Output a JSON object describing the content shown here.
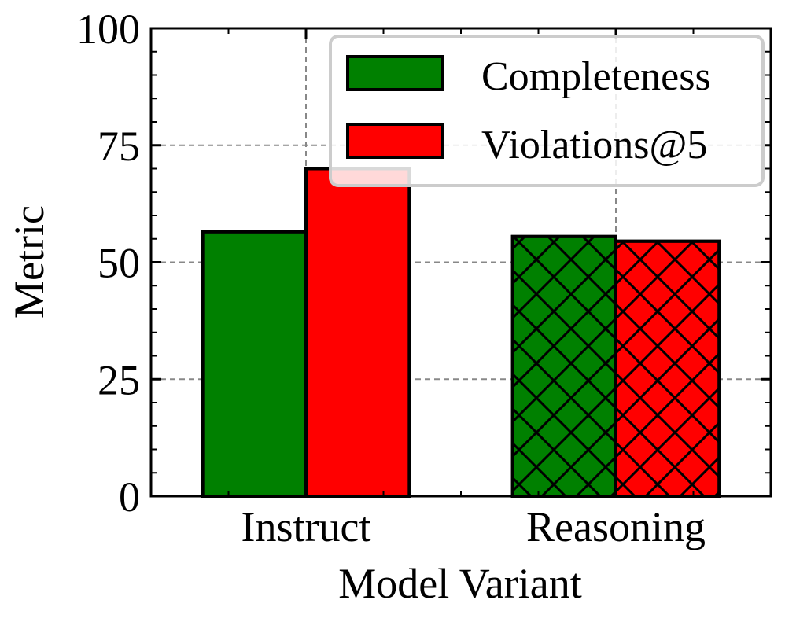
{
  "chart_data": {
    "type": "bar",
    "xlabel": "Model Variant",
    "ylabel": "Metric",
    "ylim": [
      0,
      100
    ],
    "yticks": [
      0,
      25,
      50,
      75,
      100
    ],
    "ytick_labels": [
      "0",
      "25",
      "50",
      "75",
      "100"
    ],
    "categories": [
      "Instruct",
      "Reasoning"
    ],
    "category_hatch": [
      "none",
      "crosshatch"
    ],
    "series": [
      {
        "name": "Completeness",
        "values": [
          56.5,
          55.5
        ],
        "color": "#008000"
      },
      {
        "name": "Violations@5",
        "values": [
          70.0,
          54.5
        ],
        "color": "#ff0000"
      }
    ],
    "grid": true,
    "legend": {
      "position": "top-right",
      "entries": [
        "Completeness",
        "Violations@5"
      ]
    }
  }
}
